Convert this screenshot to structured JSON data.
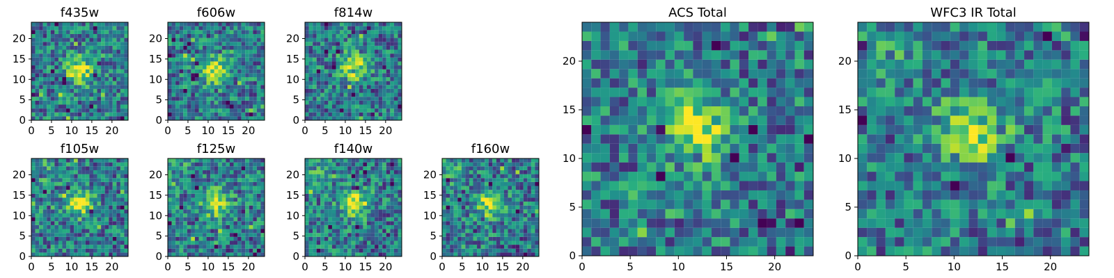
{
  "chart_data": {
    "type": "heatmap",
    "colormap": "viridis",
    "grid": false,
    "panels": [
      {
        "id": "f435w",
        "title": "f435w",
        "grid_size": [
          25,
          25
        ],
        "xlim": [
          0,
          24
        ],
        "ylim": [
          0,
          24
        ],
        "xticks": [
          0,
          5,
          10,
          15,
          20
        ],
        "yticks": [
          0,
          5,
          10,
          15,
          20
        ],
        "bright_center": [
          12,
          12
        ]
      },
      {
        "id": "f606w",
        "title": "f606w",
        "grid_size": [
          25,
          25
        ],
        "xlim": [
          0,
          24
        ],
        "ylim": [
          0,
          24
        ],
        "xticks": [
          0,
          5,
          10,
          15,
          20
        ],
        "yticks": [
          0,
          5,
          10,
          15,
          20
        ],
        "bright_center": [
          12,
          12
        ]
      },
      {
        "id": "f814w",
        "title": "f814w",
        "grid_size": [
          25,
          25
        ],
        "xlim": [
          0,
          24
        ],
        "ylim": [
          0,
          24
        ],
        "xticks": [
          0,
          5,
          10,
          15,
          20
        ],
        "yticks": [
          0,
          5,
          10,
          15,
          20
        ],
        "bright_center": [
          12,
          13
        ]
      },
      {
        "id": "f105w",
        "title": "f105w",
        "grid_size": [
          25,
          25
        ],
        "xlim": [
          0,
          24
        ],
        "ylim": [
          0,
          24
        ],
        "xticks": [
          0,
          5,
          10,
          15,
          20
        ],
        "yticks": [
          0,
          5,
          10,
          15,
          20
        ],
        "bright_center": [
          12,
          13
        ]
      },
      {
        "id": "f125w",
        "title": "f125w",
        "grid_size": [
          25,
          25
        ],
        "xlim": [
          0,
          24
        ],
        "ylim": [
          0,
          24
        ],
        "xticks": [
          0,
          5,
          10,
          15,
          20
        ],
        "yticks": [
          0,
          5,
          10,
          15,
          20
        ],
        "bright_center": [
          12,
          13
        ]
      },
      {
        "id": "f140w",
        "title": "f140w",
        "grid_size": [
          25,
          25
        ],
        "xlim": [
          0,
          24
        ],
        "ylim": [
          0,
          24
        ],
        "xticks": [
          0,
          5,
          10,
          15,
          20
        ],
        "yticks": [
          0,
          5,
          10,
          15,
          20
        ],
        "bright_center": [
          12,
          13
        ]
      },
      {
        "id": "f160w",
        "title": "f160w",
        "grid_size": [
          25,
          25
        ],
        "xlim": [
          0,
          24
        ],
        "ylim": [
          0,
          24
        ],
        "xticks": [
          0,
          5,
          10,
          15,
          20
        ],
        "yticks": [
          0,
          5,
          10,
          15,
          20
        ],
        "bright_center": [
          12,
          13
        ]
      },
      {
        "id": "acs_total",
        "title": "ACS Total",
        "grid_size": [
          25,
          25
        ],
        "xlim": [
          0,
          24
        ],
        "ylim": [
          0,
          24
        ],
        "xticks": [
          0,
          5,
          10,
          15,
          20
        ],
        "yticks": [
          0,
          5,
          10,
          15,
          20
        ],
        "bright_center": [
          12,
          13
        ]
      },
      {
        "id": "wfc3_ir_total",
        "title": "WFC3 IR Total",
        "grid_size": [
          25,
          25
        ],
        "xlim": [
          0,
          24
        ],
        "ylim": [
          0,
          24
        ],
        "xticks": [
          0,
          5,
          10,
          15,
          20
        ],
        "yticks": [
          0,
          5,
          10,
          15,
          20
        ],
        "bright_center": [
          12,
          13
        ]
      }
    ]
  }
}
